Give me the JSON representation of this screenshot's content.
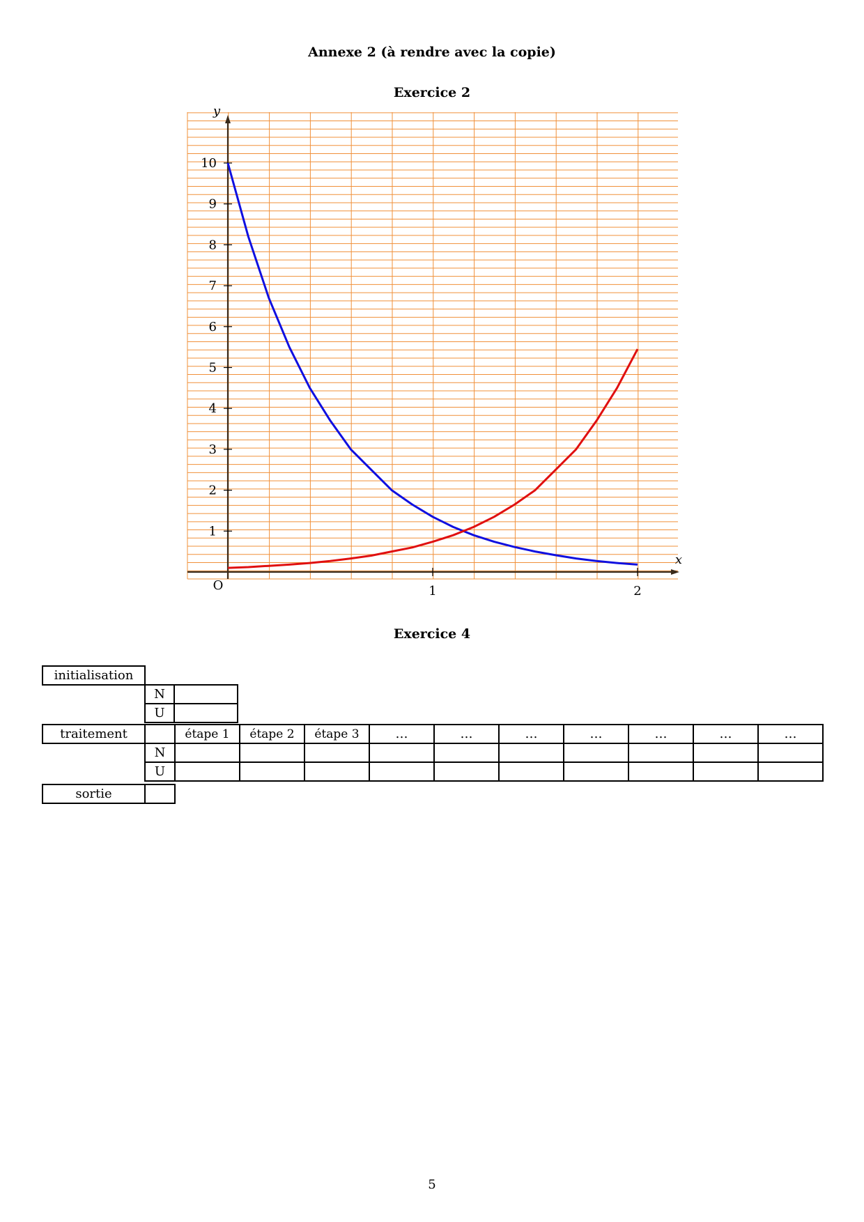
{
  "annexe_title": "Annexe 2 (à rendre avec la copie)",
  "exercise2": {
    "title": "Exercice 2",
    "chart_data": {
      "type": "line",
      "xlabel": "x",
      "ylabel": "y",
      "origin_label": "O",
      "xlim": [
        -0.2,
        2.2
      ],
      "ylim": [
        -0.2,
        11.2
      ],
      "x_ticks": [
        "1",
        "2"
      ],
      "y_ticks": [
        "1",
        "2",
        "3",
        "4",
        "5",
        "6",
        "7",
        "8",
        "9",
        "10"
      ],
      "grid": true,
      "grid_color": "#f0903a",
      "series": [
        {
          "color": "#1010e0",
          "x": [
            0,
            0.1,
            0.2,
            0.3,
            0.4,
            0.5,
            0.6,
            0.7,
            0.8,
            0.9,
            1.0,
            1.1,
            1.2,
            1.3,
            1.4,
            1.5,
            1.6,
            1.7,
            1.8,
            1.9,
            2.0
          ],
          "y": [
            10,
            8.2,
            6.7,
            5.5,
            4.5,
            3.7,
            3.0,
            2.5,
            2.0,
            1.65,
            1.35,
            1.1,
            0.9,
            0.74,
            0.61,
            0.5,
            0.41,
            0.33,
            0.27,
            0.22,
            0.18
          ]
        },
        {
          "color": "#e01010",
          "x": [
            0,
            0.1,
            0.2,
            0.3,
            0.4,
            0.5,
            0.6,
            0.7,
            0.8,
            0.9,
            1.0,
            1.1,
            1.2,
            1.3,
            1.4,
            1.5,
            1.6,
            1.7,
            1.8,
            1.9,
            2.0
          ],
          "y": [
            0.1,
            0.12,
            0.15,
            0.18,
            0.22,
            0.27,
            0.33,
            0.4,
            0.5,
            0.6,
            0.74,
            0.9,
            1.1,
            1.35,
            1.65,
            2.0,
            2.5,
            3.0,
            3.7,
            4.5,
            5.45
          ]
        }
      ]
    }
  },
  "exercise4": {
    "title": "Exercice 4",
    "table": {
      "initialisation": "initialisation",
      "n": "N",
      "u": "U",
      "traitement": "traitement",
      "sortie": "sortie",
      "steps": [
        "étape 1",
        "étape 2",
        "étape 3",
        "…",
        "…",
        "…",
        "…",
        "…",
        "…",
        "…"
      ]
    }
  },
  "page_number": "5"
}
